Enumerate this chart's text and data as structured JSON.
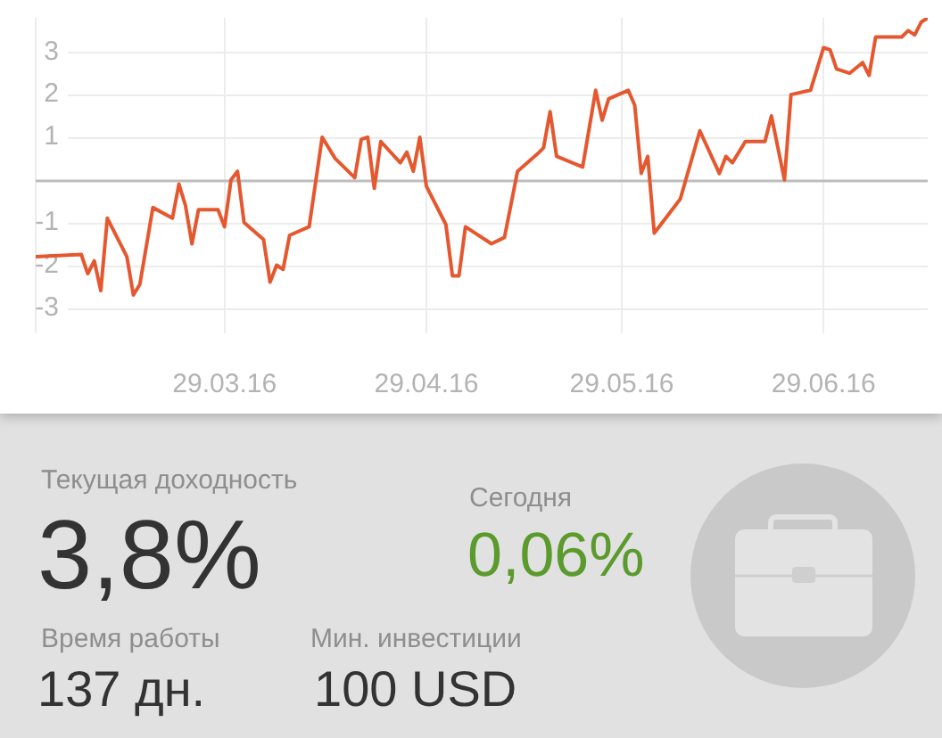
{
  "chart_data": [
    {
      "type": "line",
      "x": [
        "2016-02-29",
        "2016-03-07",
        "2016-03-08",
        "2016-03-09",
        "2016-03-10",
        "2016-03-11",
        "2016-03-14",
        "2016-03-15",
        "2016-03-16",
        "2016-03-18",
        "2016-03-21",
        "2016-03-22",
        "2016-03-23",
        "2016-03-24",
        "2016-03-25",
        "2016-03-28",
        "2016-03-29",
        "2016-03-30",
        "2016-03-31",
        "2016-04-01",
        "2016-04-04",
        "2016-04-05",
        "2016-04-06",
        "2016-04-07",
        "2016-04-08",
        "2016-04-11",
        "2016-04-13",
        "2016-04-15",
        "2016-04-18",
        "2016-04-19",
        "2016-04-20",
        "2016-04-21",
        "2016-04-22",
        "2016-04-25",
        "2016-04-26",
        "2016-04-27",
        "2016-04-28",
        "2016-04-29",
        "2016-05-02",
        "2016-05-03",
        "2016-05-04",
        "2016-05-05",
        "2016-05-09",
        "2016-05-11",
        "2016-05-13",
        "2016-05-16",
        "2016-05-17",
        "2016-05-18",
        "2016-05-19",
        "2016-05-23",
        "2016-05-25",
        "2016-05-26",
        "2016-05-27",
        "2016-05-30",
        "2016-05-31",
        "2016-06-01",
        "2016-06-02",
        "2016-06-03",
        "2016-06-07",
        "2016-06-10",
        "2016-06-13",
        "2016-06-14",
        "2016-06-15",
        "2016-06-17",
        "2016-06-20",
        "2016-06-21",
        "2016-06-23",
        "2016-06-24",
        "2016-06-27",
        "2016-06-29",
        "2016-06-30",
        "2016-07-01",
        "2016-07-03",
        "2016-07-05",
        "2016-07-06",
        "2016-07-07",
        "2016-07-11",
        "2016-07-12",
        "2016-07-13",
        "2016-07-14",
        "2016-07-15"
      ],
      "values": [
        -1.8,
        -1.75,
        -2.2,
        -1.9,
        -2.6,
        -0.9,
        -1.8,
        -2.7,
        -2.45,
        -0.65,
        -0.9,
        -0.1,
        -0.6,
        -1.5,
        -0.7,
        -0.7,
        -1.1,
        0,
        0.2,
        -1.0,
        -1.4,
        -2.4,
        -2.0,
        -2.1,
        -1.3,
        -1.1,
        1.0,
        0.5,
        0.05,
        0.95,
        1.0,
        -0.2,
        0.9,
        0.4,
        0.65,
        0.2,
        1.0,
        -0.15,
        -1.05,
        -2.25,
        -2.25,
        -1.1,
        -1.5,
        -1.35,
        0.2,
        0.6,
        0.75,
        1.6,
        0.55,
        0.3,
        2.1,
        1.4,
        1.9,
        2.1,
        1.75,
        0.15,
        0.55,
        -1.25,
        -0.45,
        1.15,
        0.15,
        0.55,
        0.4,
        0.9,
        0.9,
        1.5,
        0,
        2.0,
        2.1,
        3.1,
        3.05,
        2.6,
        2.5,
        2.75,
        2.45,
        3.35,
        3.35,
        3.5,
        3.4,
        3.7,
        3.8
      ],
      "color": "#e5582f",
      "xlim": [
        "2016-02-29",
        "2016-07-15"
      ],
      "xticks": [
        {
          "value": "2016-02-29",
          "label": null
        },
        {
          "value": "2016-03-29",
          "label": "29.03.16"
        },
        {
          "value": "2016-04-29",
          "label": "29.04.16"
        },
        {
          "value": "2016-05-29",
          "label": "29.05.16"
        },
        {
          "value": "2016-06-29",
          "label": "29.06.16"
        }
      ],
      "ylim": [
        -3.6,
        3.8
      ],
      "yticks": [
        -3,
        -2,
        -1,
        {
          "value": 0,
          "label": null
        },
        1,
        2,
        3
      ],
      "grid": true,
      "ref_lines": [
        {
          "axis": "y",
          "value": 0,
          "color": "#bdbdbd"
        }
      ]
    },
    {
      "type": "other",
      "annotations": [
        "Текущая доходность",
        "3,8%",
        "Сегодня",
        "0,06%",
        "Время работы",
        "137 дн.",
        "Мин. инвестиции",
        "100 USD"
      ]
    }
  ]
}
